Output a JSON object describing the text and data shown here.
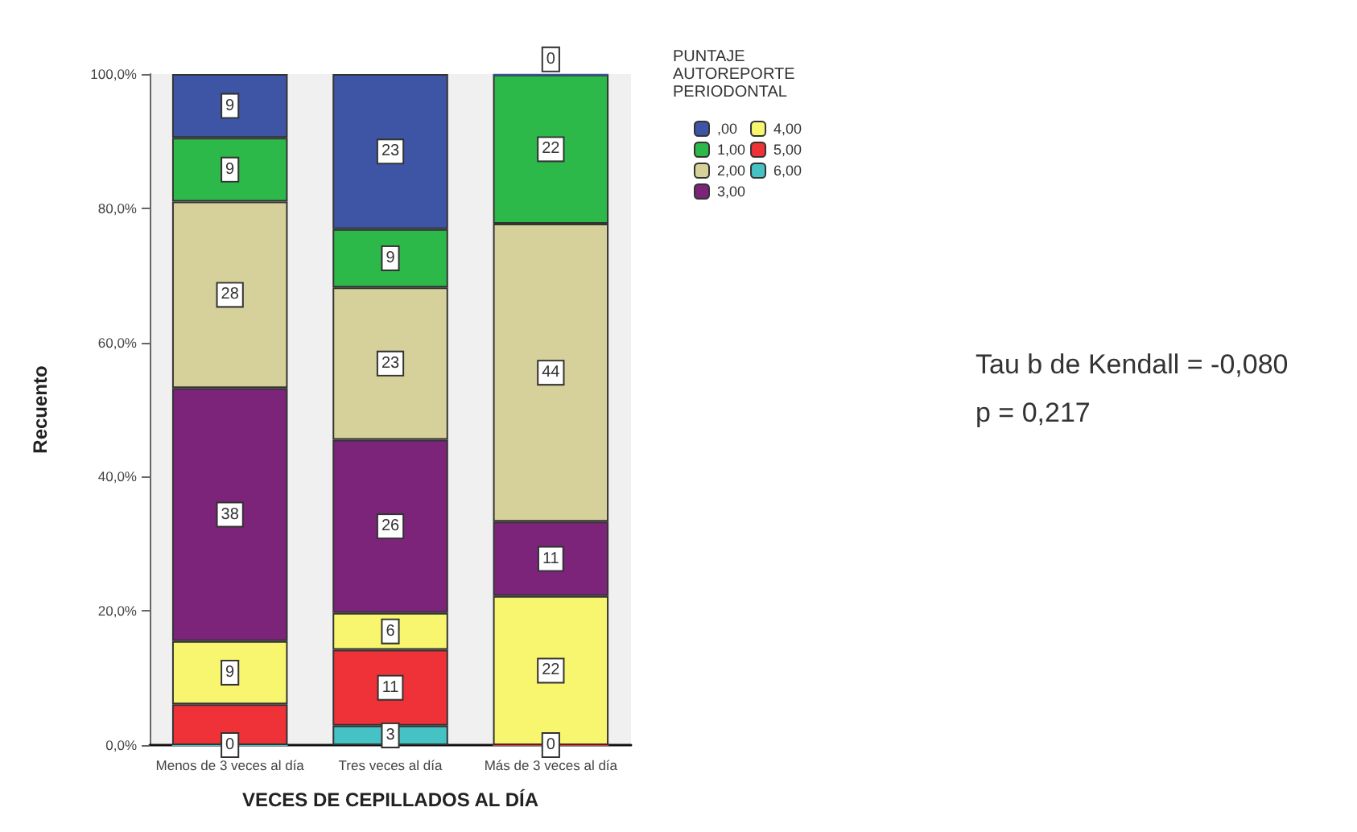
{
  "chart_data": {
    "type": "bar",
    "stacked": true,
    "xlabel": "VECES DE CEPILLADOS AL DÍA",
    "ylabel": "Recuento",
    "legend_title": "PUNTAJE AUTOREPORTE PERIODONTAL",
    "categories": [
      "Menos de 3 veces al día",
      "Tres veces al día",
      "Más de 3 veces al día"
    ],
    "series": [
      {
        "name": "6,00",
        "color": "#45c2c4",
        "values": [
          0,
          2.9,
          0
        ],
        "value_labels": [
          "0",
          "3",
          "0"
        ]
      },
      {
        "name": "5,00",
        "color": "#ee3237",
        "values": [
          6.1,
          11.3,
          0
        ],
        "value_labels": [
          null,
          "11",
          null
        ]
      },
      {
        "name": "4,00",
        "color": "#f8f56e",
        "values": [
          9.4,
          5.5,
          22.2
        ],
        "value_labels": [
          "9",
          "6",
          "22"
        ]
      },
      {
        "name": "3,00",
        "color": "#7b2479",
        "values": [
          37.7,
          25.8,
          11.1
        ],
        "value_labels": [
          "38",
          "26",
          "11"
        ]
      },
      {
        "name": "2,00",
        "color": "#d6d09a",
        "values": [
          27.8,
          22.7,
          44.4
        ],
        "value_labels": [
          "28",
          "23",
          "44"
        ]
      },
      {
        "name": "1,00",
        "color": "#2db84a",
        "values": [
          9.5,
          8.7,
          22.2
        ],
        "value_labels": [
          "9",
          "9",
          "22"
        ]
      },
      {
        "name": ",00",
        "color": "#3e55a6",
        "values": [
          9.5,
          23.1,
          0
        ],
        "value_labels": [
          "9",
          "23",
          "0"
        ]
      }
    ],
    "ylim": [
      0,
      100
    ],
    "yticks": [
      {
        "value": 0,
        "label": "0,0%"
      },
      {
        "value": 20,
        "label": "20,0%"
      },
      {
        "value": 40,
        "label": "40,0%"
      },
      {
        "value": 60,
        "label": "60,0%"
      },
      {
        "value": 80,
        "label": "80,0%"
      },
      {
        "value": 100,
        "label": "100,0%"
      }
    ],
    "grid": false,
    "legend": "top right",
    "annotations": [
      "Tau b de Kendall = -0,080",
      "p = 0,217"
    ]
  }
}
